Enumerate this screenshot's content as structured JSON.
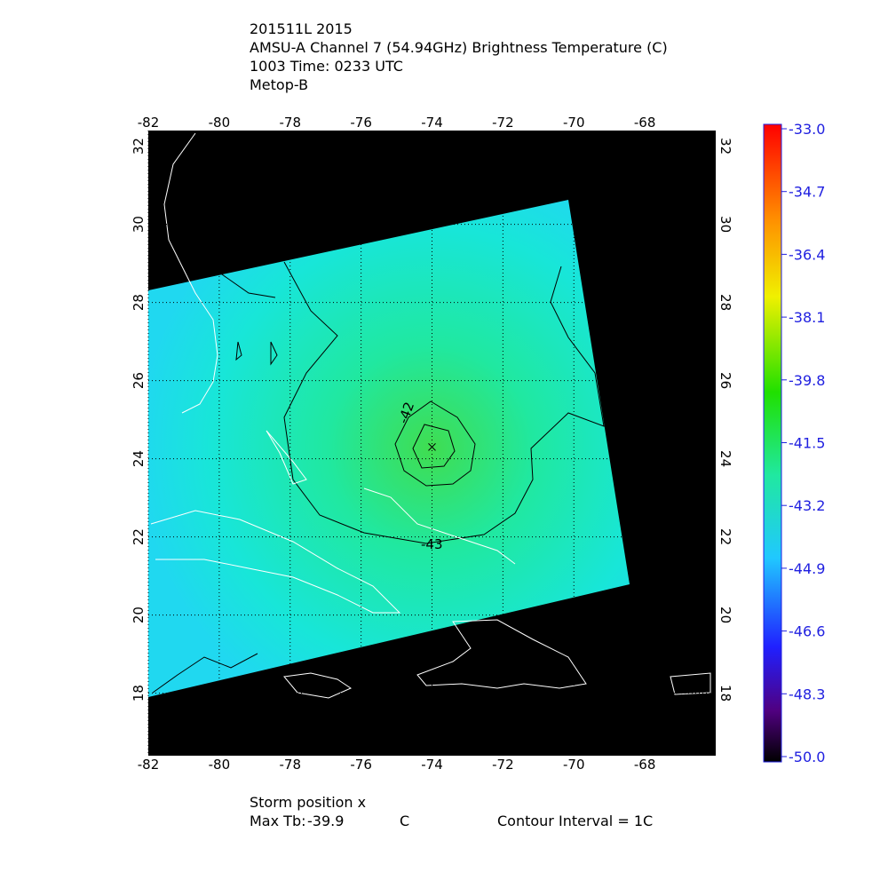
{
  "header": {
    "lines": [
      "201511L 2015",
      "AMSU-A Channel 7 (54.94GHz) Brightness Temperature (C)",
      "1003 Time: 0233 UTC",
      "Metop-B"
    ]
  },
  "map": {
    "xlim": [
      -82,
      -66
    ],
    "ylim": [
      16.4,
      32.4
    ],
    "xticks": [
      -82,
      -80,
      -78,
      -76,
      -74,
      -72,
      -70,
      -68
    ],
    "yticks": [
      18,
      20,
      22,
      24,
      26,
      28,
      30,
      32
    ],
    "grid": true,
    "storm": {
      "lon": -74,
      "lat": 24.3
    },
    "contour_labels": [
      -42,
      -43
    ]
  },
  "colorbar": {
    "range": [
      -50,
      -33
    ],
    "ticks": [
      {
        "value": -33,
        "label": "-33.0"
      },
      {
        "value": -34.7,
        "label": "-34.7"
      },
      {
        "value": -36.4,
        "label": "-36.4"
      },
      {
        "value": -38.1,
        "label": "-38.1"
      },
      {
        "value": -39.8,
        "label": "-39.8"
      },
      {
        "value": -41.5,
        "label": "-41.5"
      },
      {
        "value": -43.2,
        "label": "-43.2"
      },
      {
        "value": -44.9,
        "label": "-44.9"
      },
      {
        "value": -46.6,
        "label": "-46.6"
      },
      {
        "value": -48.3,
        "label": "-48.3"
      },
      {
        "value": -50,
        "label": "-50.0"
      }
    ]
  },
  "footer": {
    "storm_position": "Storm position x",
    "max_tb_label": "Max Tb:",
    "max_tb": -39.9,
    "max_tb_unit": "C",
    "contour_interval": "Contour Interval = 1C"
  }
}
